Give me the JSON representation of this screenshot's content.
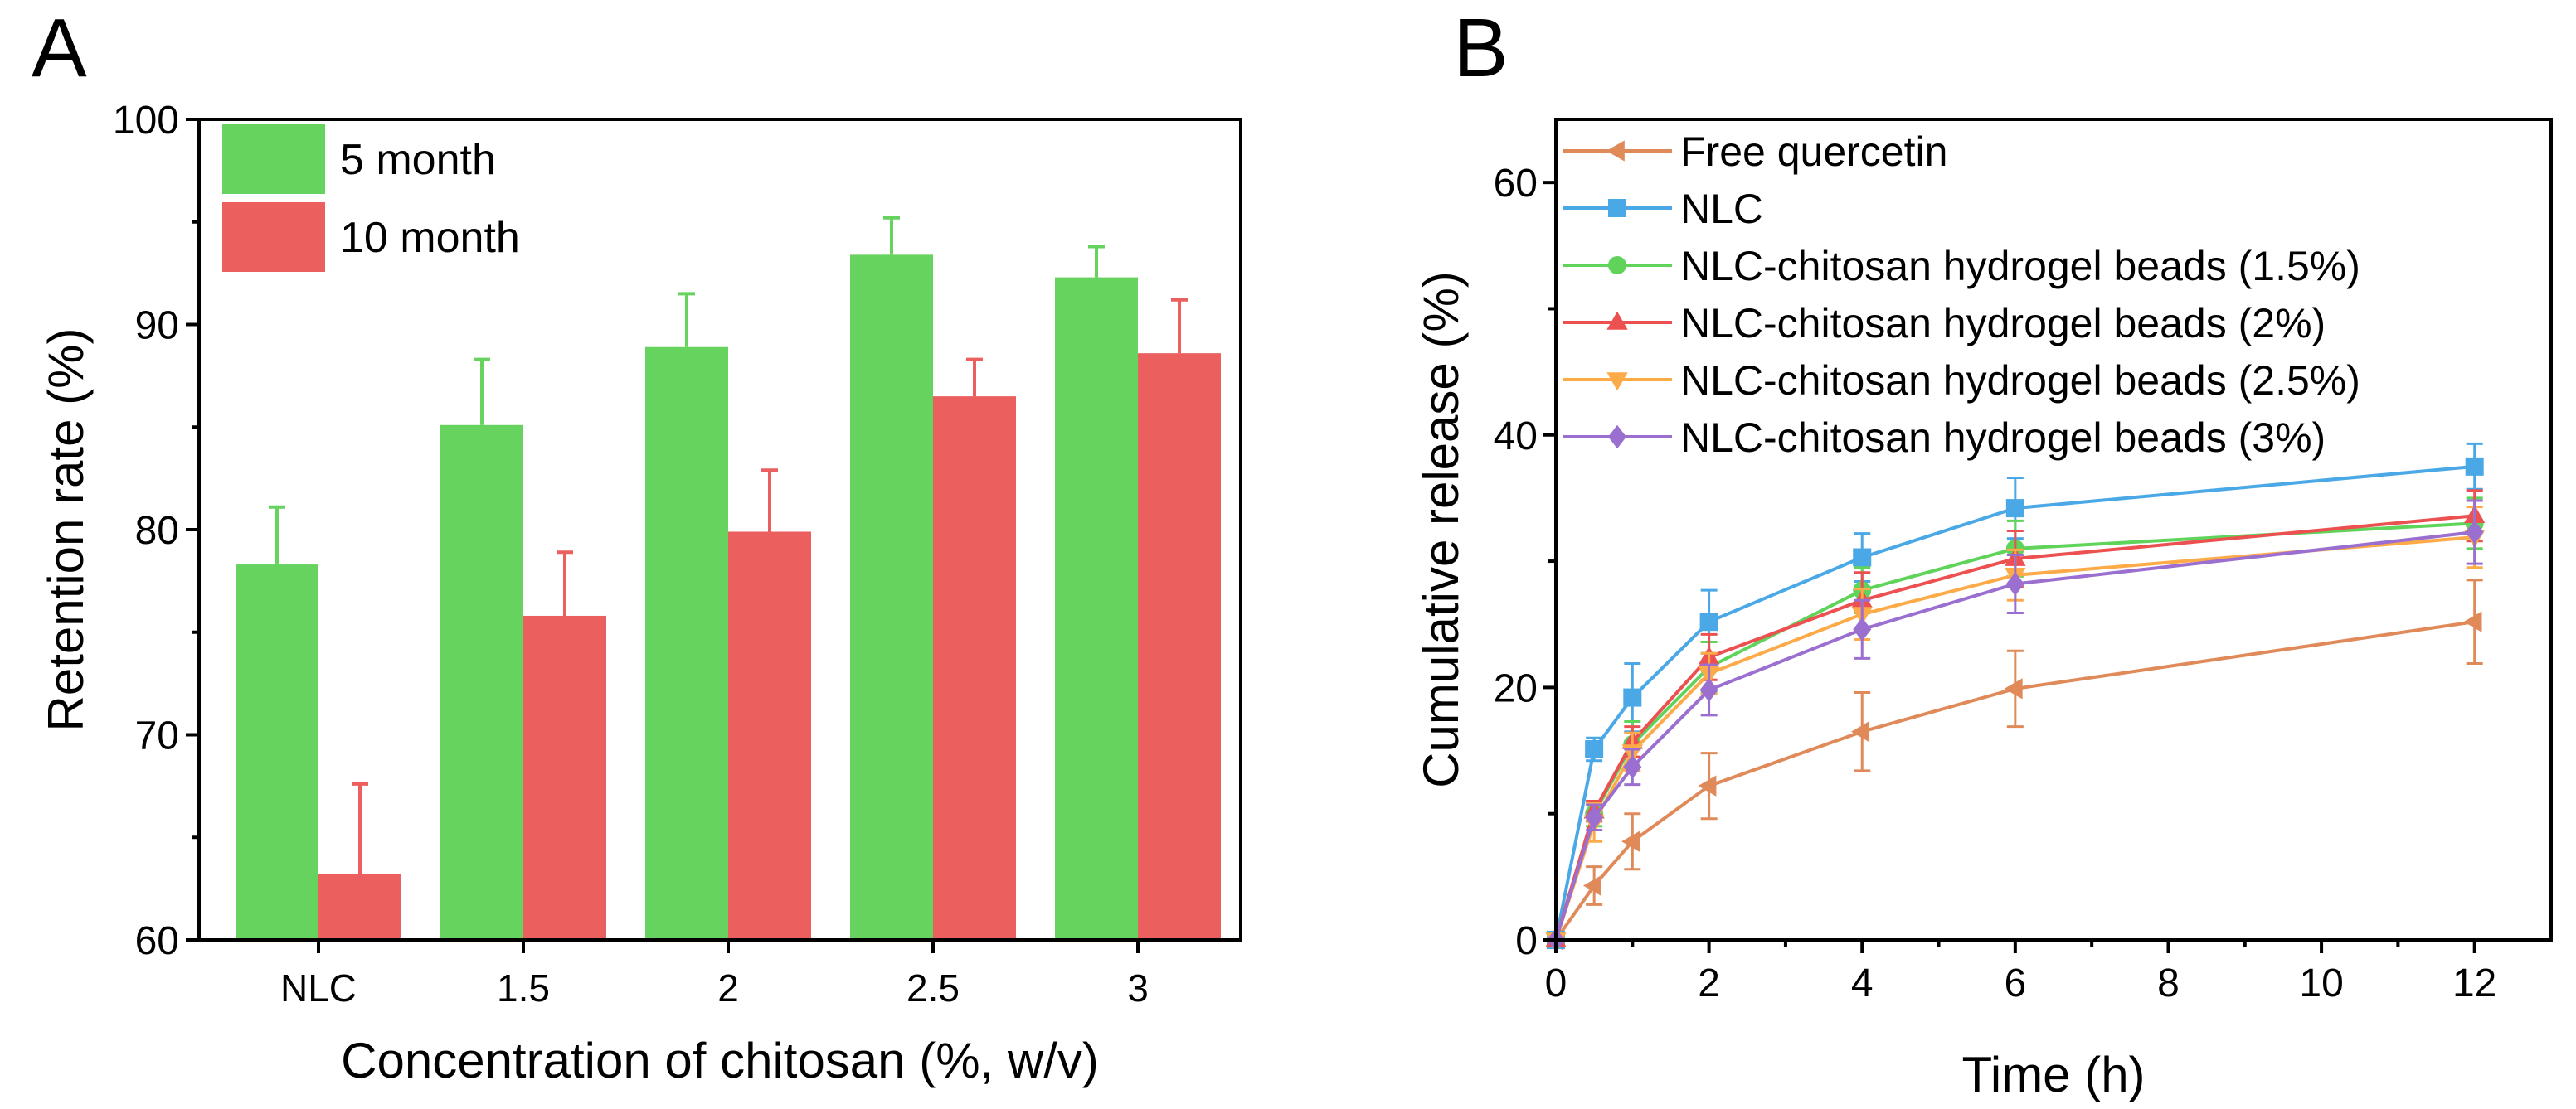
{
  "chart_data": [
    {
      "panel_label": "A",
      "type": "bar",
      "xlabel": "Concentration of chitosan (%, w/v)",
      "ylabel": "Retention rate (%)",
      "ylim": [
        60,
        100
      ],
      "yticks": [
        60,
        70,
        80,
        90,
        100
      ],
      "categories": [
        "NLC",
        "1.5",
        "2",
        "2.5",
        "3"
      ],
      "legend_position": "top-left",
      "series": [
        {
          "name": "5 month",
          "color": "#66d35e",
          "values": [
            78.3,
            85.1,
            88.9,
            93.4,
            92.3
          ],
          "errors": [
            2.8,
            3.2,
            2.6,
            1.8,
            1.5
          ]
        },
        {
          "name": "10 month",
          "color": "#ec5f5f",
          "values": [
            63.2,
            75.8,
            79.9,
            86.5,
            88.6
          ],
          "errors": [
            4.4,
            3.1,
            3.0,
            1.8,
            2.6
          ]
        }
      ]
    },
    {
      "panel_label": "B",
      "type": "line",
      "xlabel": "Time (h)",
      "ylabel": "Cumulative release (%)",
      "xlim": [
        0,
        13
      ],
      "ylim": [
        0,
        65
      ],
      "xticks": [
        0,
        2,
        4,
        6,
        8,
        10,
        12
      ],
      "yticks": [
        0,
        20,
        40,
        60
      ],
      "legend_position": "top-left",
      "x": [
        0,
        0.5,
        1,
        2,
        4,
        6,
        12
      ],
      "series": [
        {
          "name": "Free quercetin",
          "color": "#e08a5a",
          "marker": "triangle-left",
          "values": [
            0,
            4.3,
            7.8,
            12.2,
            16.5,
            19.9,
            25.2
          ],
          "errors": [
            0,
            1.5,
            2.2,
            2.6,
            3.1,
            3.0,
            3.3
          ]
        },
        {
          "name": "NLC",
          "color": "#4aa8e6",
          "marker": "square",
          "values": [
            0,
            15.1,
            19.2,
            25.2,
            30.3,
            34.2,
            37.5
          ],
          "errors": [
            0,
            0.9,
            2.7,
            2.5,
            1.9,
            2.4,
            1.8
          ]
        },
        {
          "name": "NLC-chitosan hydrogel beads (1.5%)",
          "color": "#5fd35a",
          "marker": "circle",
          "values": [
            0,
            10.0,
            15.5,
            21.6,
            27.7,
            31.0,
            33.0
          ],
          "errors": [
            0,
            1.0,
            1.8,
            2.0,
            1.8,
            2.2,
            2.0
          ]
        },
        {
          "name": "NLC-chitosan hydrogel beads (2%)",
          "color": "#ec5050",
          "marker": "triangle-up",
          "values": [
            0,
            10.2,
            15.7,
            22.4,
            26.9,
            30.2,
            33.6
          ],
          "errors": [
            0,
            0.8,
            1.2,
            1.8,
            2.2,
            2.2,
            2.0
          ]
        },
        {
          "name": "NLC-chitosan hydrogel beads (2.5%)",
          "color": "#fdaa48",
          "marker": "triangle-down",
          "values": [
            0,
            9.3,
            14.9,
            21.1,
            25.8,
            28.9,
            31.9
          ],
          "errors": [
            0,
            1.5,
            1.5,
            1.6,
            2.0,
            2.0,
            2.4
          ]
        },
        {
          "name": "NLC-chitosan hydrogel beads (3%)",
          "color": "#9a6fd0",
          "marker": "diamond",
          "values": [
            0,
            9.7,
            13.7,
            19.8,
            24.6,
            28.2,
            32.3
          ],
          "errors": [
            0,
            1.0,
            1.4,
            2.0,
            2.3,
            2.3,
            2.5
          ]
        }
      ]
    }
  ]
}
